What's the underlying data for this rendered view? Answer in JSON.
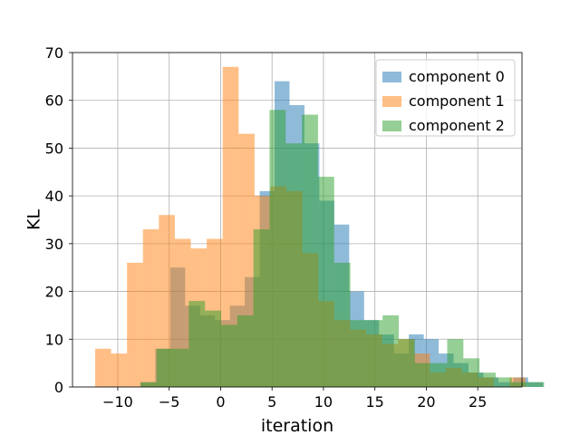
{
  "chart_data": {
    "type": "bar",
    "histogram": true,
    "xlabel": "iteration",
    "ylabel": "KL",
    "xlim": [
      -14.4,
      29.3
    ],
    "ylim": [
      0,
      70
    ],
    "xticks": [
      -10,
      -5,
      0,
      5,
      10,
      15,
      20,
      25
    ],
    "xtick_labels": [
      "−10",
      "−5",
      "0",
      "5",
      "10",
      "15",
      "20",
      "25"
    ],
    "yticks": [
      0,
      10,
      20,
      30,
      40,
      50,
      60,
      70
    ],
    "ytick_labels": [
      "0",
      "10",
      "20",
      "30",
      "40",
      "50",
      "60",
      "70"
    ],
    "grid": true,
    "legend_position": "top-right",
    "series": [
      {
        "name": "component 0",
        "color": "#1f77b4",
        "alpha": 0.5,
        "bin_start": -7.8,
        "bin_width": 1.45,
        "values": [
          1,
          8,
          25,
          17,
          15,
          14,
          17,
          23,
          41,
          64,
          59,
          51,
          39,
          34,
          20,
          14,
          11,
          7,
          11,
          10,
          7,
          5,
          3,
          2,
          1,
          2,
          1
        ]
      },
      {
        "name": "component 1",
        "color": "#ff7f0e",
        "alpha": 0.5,
        "bin_start": -12.2,
        "bin_width": 1.55,
        "values": [
          8,
          7,
          26,
          33,
          36,
          31,
          29,
          31,
          67,
          53,
          40,
          42,
          41,
          28,
          18,
          14,
          12,
          11,
          9,
          10,
          7,
          3,
          4,
          3,
          2,
          0,
          2
        ]
      },
      {
        "name": "component 2",
        "color": "#2ca02c",
        "alpha": 0.5,
        "bin_start": -7.8,
        "bin_width": 1.57,
        "values": [
          1,
          8,
          8,
          18,
          16,
          13,
          15,
          33,
          58,
          51,
          57,
          44,
          26,
          14,
          14,
          15,
          10,
          5,
          5,
          10,
          6,
          3,
          2,
          1,
          1
        ]
      }
    ]
  }
}
